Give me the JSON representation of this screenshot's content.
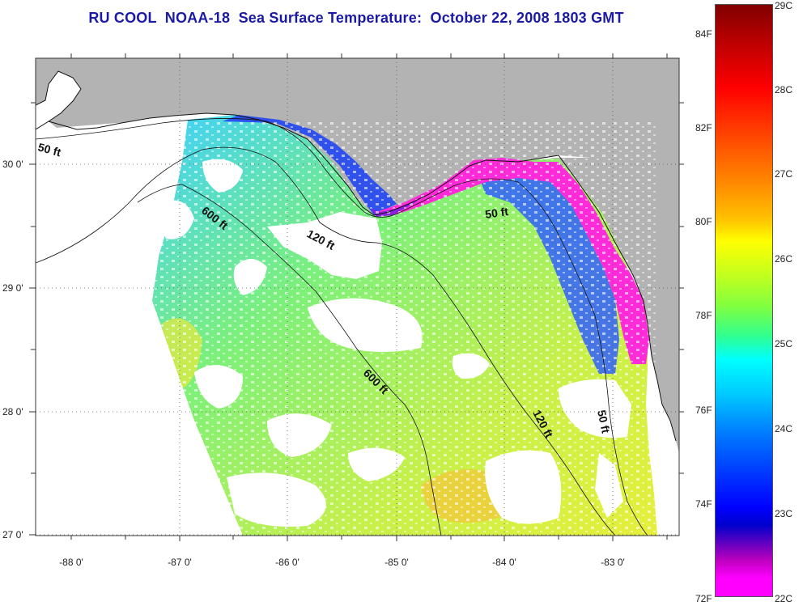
{
  "title": "RU COOL  NOAA-18  Sea Surface Temperature:  October 22, 2008 1803 GMT",
  "colors": {
    "land": "#b3b3b3",
    "cloud": "#ffffff",
    "frame": "#333333",
    "title_color": "#1a1aa6"
  },
  "longitude_labels": [
    "-88 0'",
    "-87 0'",
    "-86 0'",
    "-85 0'",
    "-84 0'",
    "-83 0'"
  ],
  "latitude_labels": [
    "30 0'",
    "29 0'",
    "28 0'",
    "27 0'"
  ],
  "contour_labels": [
    "50 ft",
    "600 ft",
    "120 ft",
    "50 ft",
    "600 ft",
    "120 ft",
    "50 ft"
  ],
  "colorbar": {
    "fahrenheit_ticks": [
      "84F",
      "82F",
      "80F",
      "78F",
      "76F",
      "74F",
      "72F"
    ],
    "celsius_ticks": [
      "29C",
      "28C",
      "27C",
      "26C",
      "25C",
      "24C",
      "23C",
      "22C"
    ],
    "range_c": [
      22,
      29
    ]
  }
}
